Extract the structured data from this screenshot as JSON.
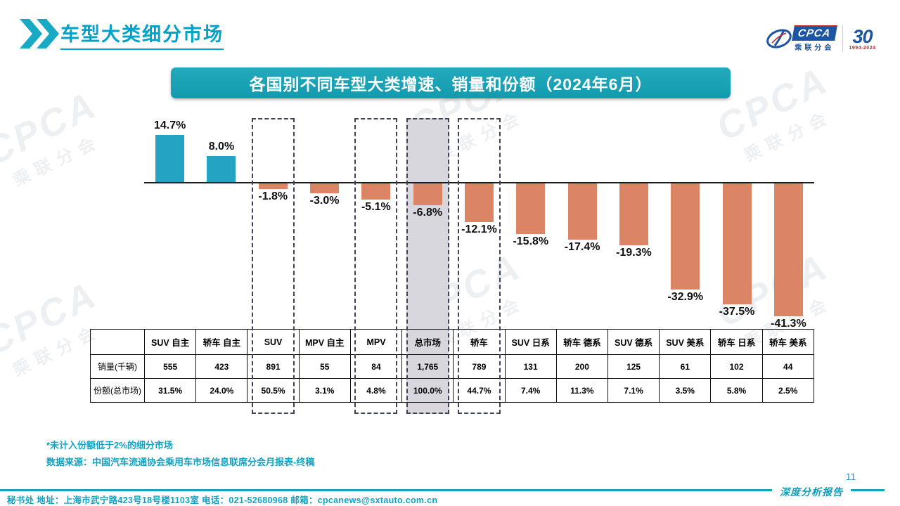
{
  "page": {
    "title": "车型大类细分市场",
    "page_number": "11",
    "accent_color": "#13a2c2"
  },
  "header_logos": {
    "cpca_text": "CPCA",
    "cpca_sub": "乘联分会",
    "anniversary_number": "30",
    "anniversary_years": "1994-2024"
  },
  "banner": {
    "title": "各国别不同车型大类增速、销量和份额（2024年6月）"
  },
  "chart_data": {
    "type": "bar",
    "title": "各国别不同车型大类增速、销量和份额（2024年6月）",
    "categories": [
      "SUV 自主",
      "轿车 自主",
      "SUV",
      "MPV 自主",
      "MPV",
      "总市场",
      "轿车",
      "SUV 日系",
      "轿车 德系",
      "SUV 德系",
      "SUV 美系",
      "轿车 日系",
      "轿车 美系"
    ],
    "series": [
      {
        "name": "增速",
        "unit": "%",
        "values": [
          14.7,
          8.0,
          -1.8,
          -3.0,
          -5.1,
          -6.8,
          -12.1,
          -15.8,
          -17.4,
          -19.3,
          -32.9,
          -37.5,
          -41.3
        ]
      },
      {
        "name": "销量(千辆)",
        "unit": "千辆",
        "values": [
          555,
          423,
          891,
          55,
          84,
          1765,
          789,
          131,
          200,
          125,
          61,
          102,
          44
        ]
      },
      {
        "name": "份额(总市场)",
        "unit": "%",
        "values": [
          31.5,
          24.0,
          50.5,
          3.1,
          4.8,
          100.0,
          44.7,
          7.4,
          11.3,
          7.1,
          3.5,
          5.8,
          2.5
        ]
      }
    ],
    "bar_labels": [
      "14.7%",
      "8.0%",
      "-1.8%",
      "-3.0%",
      "-5.1%",
      "-6.8%",
      "-12.1%",
      "-15.8%",
      "-17.4%",
      "-19.3%",
      "-32.9%",
      "-37.5%",
      "-41.3%"
    ],
    "highlight": {
      "dashed_categories": [
        "SUV",
        "MPV",
        "总市场",
        "轿车"
      ],
      "filled_category": "总市场",
      "fill_color": "#d8d7dd",
      "dash_color": "#3d4254"
    },
    "positive_color": "#24a3c2",
    "negative_color": "#dc8466",
    "ylim": [
      -45,
      18
    ],
    "grid": false,
    "legend": "none"
  },
  "table": {
    "corner_label": "",
    "columns": [
      "SUV 自主",
      "轿车 自主",
      "SUV",
      "MPV 自主",
      "MPV",
      "总市场",
      "轿车",
      "SUV 日系",
      "轿车 德系",
      "SUV 德系",
      "SUV 美系",
      "轿车 日系",
      "轿车 美系"
    ],
    "row_headers": [
      "销量(千辆)",
      "份额(总市场)"
    ],
    "sales": [
      "555",
      "423",
      "891",
      "55",
      "84",
      "1,765",
      "789",
      "131",
      "200",
      "125",
      "61",
      "102",
      "44"
    ],
    "share": [
      "31.5%",
      "24.0%",
      "50.5%",
      "3.1%",
      "4.8%",
      "100.0%",
      "44.7%",
      "7.4%",
      "11.3%",
      "7.1%",
      "3.5%",
      "5.8%",
      "2.5%"
    ]
  },
  "notes": {
    "note1": "*未计入份额低于2%的细分市场",
    "note2": "数据来源：中国汽车流通协会乘用车市场信息联席分会月报表-终稿"
  },
  "footer": {
    "contact": "秘书处   地址：上海市武宁路423号18号楼1103室   电话：021-52680968    邮箱：cpcanews@sxtauto.com.cn",
    "report_label": "深度分析报告"
  },
  "watermark": {
    "text_main": "CPCA",
    "text_sub": "乘联分会"
  }
}
